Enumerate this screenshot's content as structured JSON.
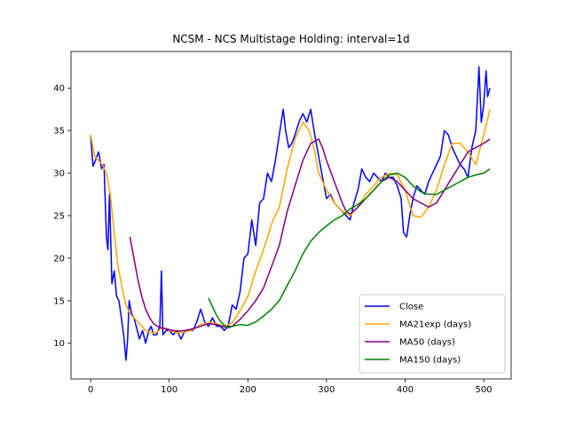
{
  "chart_data": {
    "type": "line",
    "title": "NCSM - NCS Multistage Holding: interval=1d",
    "xlabel": "",
    "ylabel": "",
    "xlim": [
      -25,
      535
    ],
    "ylim": [
      5.8,
      44.3
    ],
    "xticks": [
      0,
      100,
      200,
      300,
      400,
      500
    ],
    "yticks": [
      10,
      15,
      20,
      25,
      30,
      35,
      40
    ],
    "grid": false,
    "legend_position": "lower right",
    "series": [
      {
        "name": "Close",
        "color": "#0000ff",
        "x": [
          0,
          3,
          6,
          10,
          14,
          17,
          20,
          22,
          24,
          27,
          30,
          33,
          36,
          39,
          42,
          45,
          47,
          49,
          52,
          55,
          58,
          62,
          66,
          70,
          74,
          77,
          80,
          84,
          88,
          90,
          92,
          96,
          100,
          105,
          110,
          115,
          120,
          125,
          130,
          135,
          140,
          145,
          150,
          155,
          160,
          165,
          170,
          175,
          180,
          185,
          190,
          195,
          200,
          205,
          210,
          215,
          220,
          225,
          230,
          235,
          240,
          245,
          248,
          252,
          256,
          260,
          265,
          270,
          275,
          280,
          285,
          290,
          295,
          300,
          305,
          310,
          315,
          320,
          325,
          330,
          335,
          340,
          345,
          350,
          355,
          360,
          365,
          370,
          375,
          380,
          385,
          390,
          395,
          398,
          402,
          406,
          410,
          415,
          420,
          425,
          430,
          435,
          440,
          445,
          450,
          455,
          460,
          465,
          470,
          475,
          480,
          485,
          490,
          494,
          497,
          500,
          503,
          505,
          508
        ],
        "values": [
          34.5,
          30.8,
          31.5,
          32.5,
          30.5,
          31.0,
          22.5,
          21.0,
          27.5,
          17.0,
          18.5,
          15.5,
          15.0,
          13.0,
          11.0,
          8.0,
          10.5,
          15.0,
          13.5,
          13.0,
          12.0,
          10.5,
          11.5,
          10.0,
          11.5,
          12.0,
          11.0,
          11.0,
          12.0,
          18.5,
          11.0,
          11.5,
          11.5,
          11.0,
          11.5,
          10.5,
          11.5,
          11.5,
          11.5,
          12.5,
          14.0,
          12.5,
          12.0,
          13.0,
          12.0,
          12.0,
          11.5,
          12.0,
          14.5,
          14.0,
          16.0,
          20.0,
          20.5,
          24.5,
          21.5,
          26.5,
          27.0,
          30.0,
          29.0,
          31.5,
          34.5,
          37.5,
          35.0,
          33.0,
          33.5,
          34.5,
          36.0,
          37.0,
          36.0,
          37.5,
          34.5,
          32.0,
          29.5,
          27.0,
          27.5,
          26.5,
          26.0,
          25.5,
          25.0,
          24.5,
          26.5,
          28.0,
          30.5,
          29.5,
          29.0,
          30.0,
          29.5,
          29.0,
          30.0,
          29.5,
          29.5,
          28.5,
          27.0,
          23.0,
          22.5,
          25.0,
          27.0,
          28.5,
          28.0,
          27.5,
          29.0,
          30.0,
          31.0,
          32.0,
          35.0,
          34.5,
          33.0,
          32.0,
          31.0,
          30.5,
          29.5,
          33.0,
          35.0,
          42.5,
          36.0,
          38.0,
          42.0,
          39.0,
          40.0
        ]
      },
      {
        "name": "MA21exp (days)",
        "color": "#ffa500",
        "x": [
          0,
          5,
          10,
          15,
          20,
          25,
          30,
          35,
          40,
          45,
          50,
          55,
          60,
          65,
          70,
          75,
          80,
          85,
          90,
          95,
          100,
          110,
          120,
          130,
          140,
          150,
          160,
          170,
          180,
          190,
          200,
          210,
          220,
          230,
          240,
          250,
          260,
          270,
          278,
          285,
          290,
          300,
          310,
          320,
          330,
          340,
          350,
          360,
          370,
          380,
          390,
          400,
          410,
          420,
          430,
          440,
          450,
          460,
          470,
          480,
          490,
          500,
          508
        ],
        "values": [
          34.5,
          32.0,
          31.5,
          31.0,
          30.0,
          27.5,
          23.0,
          19.0,
          16.5,
          14.5,
          13.5,
          13.0,
          12.5,
          12.0,
          11.5,
          11.3,
          11.2,
          11.3,
          11.8,
          11.8,
          11.5,
          11.2,
          11.3,
          11.6,
          12.2,
          12.4,
          12.3,
          12.0,
          12.4,
          13.8,
          15.5,
          18.5,
          21.0,
          24.0,
          26.0,
          30.5,
          34.0,
          36.0,
          35.0,
          32.5,
          30.0,
          28.0,
          26.5,
          25.5,
          25.0,
          26.0,
          27.5,
          28.5,
          29.5,
          30.0,
          29.8,
          28.0,
          25.0,
          24.8,
          26.0,
          28.0,
          31.0,
          33.5,
          33.5,
          32.5,
          31.0,
          34.5,
          37.5
        ]
      },
      {
        "name": "MA50 (days)",
        "color": "#800080",
        "x": [
          50,
          55,
          60,
          65,
          70,
          75,
          80,
          85,
          90,
          100,
          110,
          120,
          130,
          140,
          150,
          160,
          170,
          180,
          190,
          200,
          210,
          220,
          230,
          240,
          250,
          260,
          270,
          280,
          290,
          295,
          300,
          310,
          320,
          325,
          330,
          340,
          350,
          360,
          370,
          380,
          390,
          400,
          410,
          420,
          430,
          440,
          450,
          460,
          470,
          480,
          490,
          500,
          508
        ],
        "values": [
          22.5,
          20.0,
          17.5,
          15.5,
          14.0,
          13.0,
          12.3,
          12.0,
          11.8,
          11.6,
          11.4,
          11.5,
          11.7,
          12.0,
          12.3,
          12.2,
          11.9,
          12.0,
          12.8,
          13.8,
          15.0,
          16.5,
          19.0,
          21.5,
          25.5,
          28.5,
          31.5,
          33.5,
          34.0,
          33.0,
          31.5,
          29.0,
          26.5,
          25.5,
          25.2,
          26.0,
          27.0,
          28.0,
          29.0,
          29.5,
          29.0,
          28.0,
          27.0,
          26.5,
          26.0,
          26.5,
          28.0,
          29.5,
          31.0,
          32.5,
          33.0,
          33.5,
          34.0
        ]
      },
      {
        "name": "MA150 (days)",
        "color": "#008000",
        "x": [
          150,
          155,
          160,
          165,
          170,
          175,
          180,
          190,
          200,
          210,
          220,
          230,
          240,
          250,
          260,
          270,
          280,
          290,
          300,
          310,
          320,
          330,
          340,
          350,
          360,
          370,
          380,
          390,
          400,
          410,
          420,
          430,
          440,
          450,
          460,
          470,
          480,
          490,
          500,
          508
        ],
        "values": [
          15.3,
          14.3,
          13.3,
          12.6,
          12.1,
          11.8,
          12.0,
          12.2,
          12.1,
          12.5,
          13.2,
          14.0,
          15.0,
          16.8,
          18.5,
          20.5,
          22.0,
          23.0,
          23.8,
          24.5,
          25.0,
          25.8,
          26.3,
          27.0,
          28.0,
          29.0,
          29.8,
          30.0,
          29.5,
          28.5,
          27.8,
          27.5,
          27.5,
          28.0,
          28.5,
          29.0,
          29.5,
          29.8,
          30.0,
          30.5
        ]
      }
    ]
  }
}
